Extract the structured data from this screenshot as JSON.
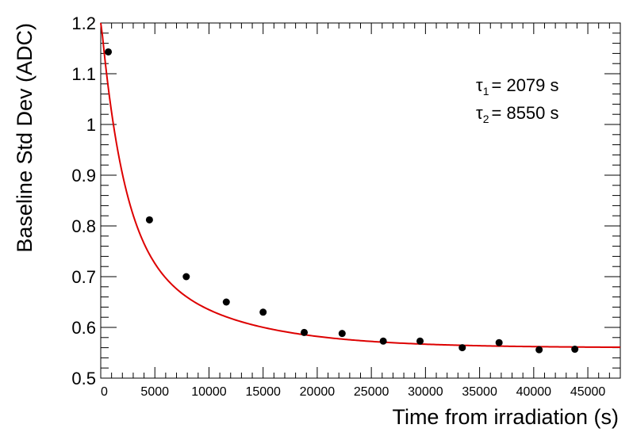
{
  "chart_data": {
    "type": "scatter",
    "xlabel": "Time from irradiation (s)",
    "ylabel": "Baseline Std Dev (ADC)",
    "xlim": [
      0,
      48000
    ],
    "ylim": [
      0.5,
      1.2
    ],
    "x_ticks": [
      0,
      5000,
      10000,
      15000,
      20000,
      25000,
      30000,
      35000,
      40000,
      45000
    ],
    "y_ticks": [
      0.5,
      0.6,
      0.7,
      0.8,
      0.9,
      1.0,
      1.1,
      1.2
    ],
    "x_tick_labels": [
      "0",
      "5000",
      "10000",
      "15000",
      "20000",
      "25000",
      "30000",
      "35000",
      "40000",
      "45000"
    ],
    "y_tick_labels": [
      "0.5",
      "0.6",
      "0.7",
      "0.8",
      "0.9",
      "1",
      "1.1",
      "1.2"
    ],
    "grid": false,
    "series": [
      {
        "marker_color": "#000000",
        "x": [
          700,
          4500,
          7900,
          11600,
          15000,
          18800,
          22300,
          26100,
          29500,
          33400,
          36800,
          40500,
          43800
        ],
        "y": [
          1.143,
          0.812,
          0.7,
          0.65,
          0.63,
          0.59,
          0.588,
          0.573,
          0.573,
          0.56,
          0.57,
          0.556,
          0.557
        ]
      }
    ],
    "fit": {
      "color": "#dd0000",
      "tau1": 2079,
      "tau2": 8550,
      "A": 0.42,
      "B": 0.23,
      "C": 0.56,
      "x_range": [
        0,
        48000
      ]
    },
    "annotations": {
      "tau1": {
        "symbol": "τ",
        "sub": "1",
        "value": "= 2079 s"
      },
      "tau2": {
        "symbol": "τ",
        "sub": "2",
        "value": "= 8550 s"
      }
    }
  }
}
